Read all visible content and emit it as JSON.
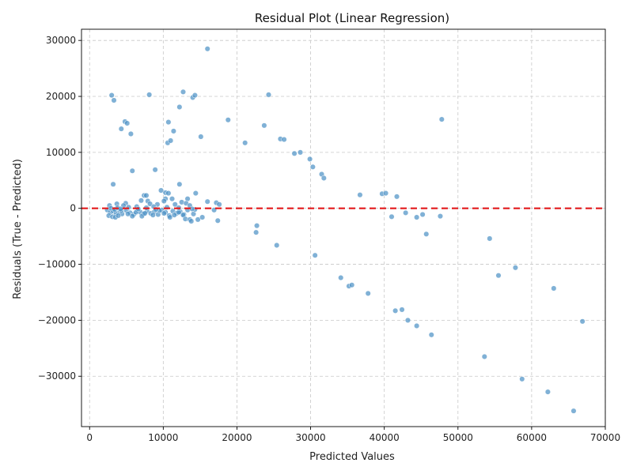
{
  "chart_data": {
    "type": "scatter",
    "title": "Residual Plot (Linear Regression)",
    "xlabel": "Predicted Values",
    "ylabel": "Residuals (True - Predicted)",
    "xlim": [
      -1100,
      70000
    ],
    "ylim": [
      -39000,
      32000
    ],
    "xticks": [
      0,
      10000,
      20000,
      30000,
      40000,
      50000,
      60000,
      70000
    ],
    "yticks": [
      -30000,
      -20000,
      -10000,
      0,
      10000,
      20000,
      30000
    ],
    "xtick_labels": [
      "0",
      "10000",
      "20000",
      "30000",
      "40000",
      "50000",
      "60000",
      "70000"
    ],
    "ytick_labels": [
      "−30000",
      "−20000",
      "−10000",
      "0",
      "10000",
      "20000",
      "30000"
    ],
    "grid": true,
    "reference_line": {
      "y": 0,
      "style": "dashed",
      "color": "#e31a1c"
    },
    "point_color": "#4a90c4",
    "series": [
      {
        "points": [
          [
            16000,
            28500
          ],
          [
            3000,
            20200
          ],
          [
            3300,
            19300
          ],
          [
            8100,
            20300
          ],
          [
            12700,
            20800
          ],
          [
            14000,
            19800
          ],
          [
            14300,
            20200
          ],
          [
            24300,
            20300
          ],
          [
            12200,
            18100
          ],
          [
            4800,
            15500
          ],
          [
            5100,
            15200
          ],
          [
            10700,
            15400
          ],
          [
            18800,
            15800
          ],
          [
            47800,
            15900
          ],
          [
            4300,
            14200
          ],
          [
            5600,
            13300
          ],
          [
            11400,
            13800
          ],
          [
            23700,
            14800
          ],
          [
            15100,
            12800
          ],
          [
            10600,
            11700
          ],
          [
            11000,
            12100
          ],
          [
            21100,
            11700
          ],
          [
            25900,
            12400
          ],
          [
            26400,
            12300
          ],
          [
            27800,
            9800
          ],
          [
            28600,
            10000
          ],
          [
            29900,
            8800
          ],
          [
            30300,
            7400
          ],
          [
            31500,
            6100
          ],
          [
            31800,
            5400
          ],
          [
            5800,
            6700
          ],
          [
            8900,
            6900
          ],
          [
            3200,
            4300
          ],
          [
            12200,
            4300
          ],
          [
            9700,
            3200
          ],
          [
            10300,
            2800
          ],
          [
            10700,
            2700
          ],
          [
            14400,
            2700
          ],
          [
            7400,
            2300
          ],
          [
            7700,
            2300
          ],
          [
            36700,
            2400
          ],
          [
            39700,
            2600
          ],
          [
            40200,
            2700
          ],
          [
            41700,
            2100
          ],
          [
            10300,
            1700
          ],
          [
            11200,
            1700
          ],
          [
            13300,
            1700
          ],
          [
            10100,
            1300
          ],
          [
            7000,
            1400
          ],
          [
            7900,
            1300
          ],
          [
            16000,
            1200
          ],
          [
            17200,
            1000
          ],
          [
            17600,
            700
          ],
          [
            12500,
            1100
          ],
          [
            13100,
            900
          ],
          [
            8200,
            800
          ],
          [
            3700,
            800
          ],
          [
            4900,
            900
          ],
          [
            9200,
            700
          ],
          [
            11600,
            700
          ],
          [
            13600,
            500
          ],
          [
            2700,
            500
          ],
          [
            4600,
            500
          ],
          [
            6400,
            300
          ],
          [
            8700,
            300
          ],
          [
            2400,
            -300
          ],
          [
            2800,
            -700
          ],
          [
            3200,
            -500
          ],
          [
            3600,
            -900
          ],
          [
            4100,
            -600
          ],
          [
            4400,
            -1000
          ],
          [
            5000,
            -400
          ],
          [
            5500,
            -800
          ],
          [
            6000,
            -1100
          ],
          [
            6500,
            -300
          ],
          [
            6900,
            -700
          ],
          [
            7300,
            -1000
          ],
          [
            7800,
            -500
          ],
          [
            8300,
            -900
          ],
          [
            8800,
            -600
          ],
          [
            9300,
            -1100
          ],
          [
            9800,
            -300
          ],
          [
            10300,
            -700
          ],
          [
            10800,
            -1300
          ],
          [
            11300,
            -500
          ],
          [
            11800,
            -900
          ],
          [
            12300,
            -600
          ],
          [
            12800,
            -1100
          ],
          [
            13300,
            -300
          ],
          [
            14100,
            -1000
          ],
          [
            2600,
            -1300
          ],
          [
            3100,
            -1500
          ],
          [
            3500,
            -1600
          ],
          [
            3900,
            -1300
          ],
          [
            4300,
            -400
          ],
          [
            5200,
            -1000
          ],
          [
            5800,
            -1400
          ],
          [
            6300,
            -700
          ],
          [
            7100,
            -1400
          ],
          [
            7500,
            -900
          ],
          [
            8600,
            -1200
          ],
          [
            9500,
            -400
          ],
          [
            10100,
            -900
          ],
          [
            10900,
            -1600
          ],
          [
            11500,
            -1200
          ],
          [
            12100,
            -700
          ],
          [
            12700,
            -1200
          ],
          [
            13000,
            -1900
          ],
          [
            13600,
            -2000
          ],
          [
            13800,
            -2300
          ],
          [
            14300,
            -200
          ],
          [
            14700,
            -2000
          ],
          [
            15300,
            -1600
          ],
          [
            16900,
            -300
          ],
          [
            17400,
            -2200
          ],
          [
            2900,
            0
          ],
          [
            3400,
            -200
          ],
          [
            3800,
            100
          ],
          [
            4200,
            -100
          ],
          [
            5300,
            200
          ],
          [
            6600,
            -100
          ],
          [
            7700,
            100
          ],
          [
            9000,
            -200
          ],
          [
            10500,
            200
          ],
          [
            12100,
            100
          ],
          [
            13900,
            -100
          ],
          [
            22700,
            -3100
          ],
          [
            22600,
            -4300
          ],
          [
            25400,
            -6600
          ],
          [
            30600,
            -8400
          ],
          [
            41000,
            -1500
          ],
          [
            42900,
            -800
          ],
          [
            44400,
            -1600
          ],
          [
            45200,
            -1100
          ],
          [
            45700,
            -4600
          ],
          [
            47600,
            -1400
          ],
          [
            54300,
            -5400
          ],
          [
            55500,
            -12000
          ],
          [
            57800,
            -10600
          ],
          [
            34100,
            -12400
          ],
          [
            35200,
            -13900
          ],
          [
            35600,
            -13700
          ],
          [
            37800,
            -15200
          ],
          [
            41500,
            -18300
          ],
          [
            42400,
            -18100
          ],
          [
            43200,
            -20000
          ],
          [
            44400,
            -21000
          ],
          [
            46400,
            -22600
          ],
          [
            63000,
            -14300
          ],
          [
            66900,
            -20200
          ],
          [
            53600,
            -26500
          ],
          [
            58700,
            -30500
          ],
          [
            62200,
            -32800
          ],
          [
            65700,
            -36200
          ]
        ]
      }
    ]
  }
}
